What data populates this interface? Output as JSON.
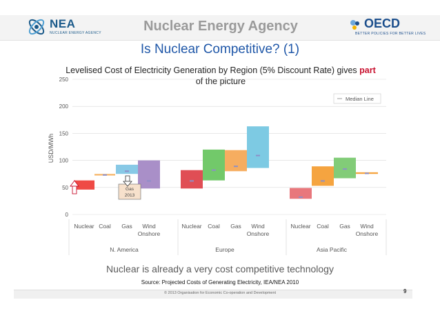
{
  "header": {
    "nea_name": "NEA",
    "nea_subtitle": "NUCLEAR ENERGY AGENCY",
    "agency": "Nuclear Energy Agency",
    "oecd_name": "OECD",
    "oecd_subtitle": "BETTER POLICIES FOR BETTER LIVES"
  },
  "slide": {
    "title": "Is Nuclear Competitive? (1)",
    "subtitle_main": "Levelised Cost of Electricity Generation by Region (5% Discount Rate) gives ",
    "subtitle_highlight": "part",
    "subtitle_end": " of the picture",
    "takeaway": "Nuclear is already a very cost competitive technology",
    "source": "Source: Projected Costs of Generating Electricity, IEA/NEA 2010",
    "copyright": "© 2013 Organisation for Economic Co-operation and Development",
    "page_number": "9"
  },
  "colors": {
    "nuclear": "#ef4a45",
    "coal": "#f7b86e",
    "gas": "#88c9e6",
    "wind": "#a98fc8",
    "nuclear_eu": "#e04e55",
    "coal_eu": "#72c96a",
    "gas_eu": "#f6ad60",
    "wind_eu": "#7dcae3",
    "nuclear_ap": "#e8777c",
    "coal_ap": "#f5a440",
    "gas_ap": "#82cc78",
    "wind_ap": "#f5a440",
    "median": "#8d8fc8",
    "title_blue": "#1f57a8",
    "highlight_red": "#c8102e"
  },
  "chart_data": {
    "type": "floating-bar",
    "ylabel": "USD/MWh",
    "ylim": [
      0,
      250
    ],
    "yticks": [
      0,
      50,
      100,
      150,
      200,
      250
    ],
    "legend": "Median Line",
    "legend_position": "top-right",
    "annotation": "Gas 2013",
    "regions": [
      {
        "name": "N. America",
        "bars": [
          {
            "tech": "Nuclear",
            "label": "Nuclear",
            "low": 46,
            "high": 63,
            "median": null,
            "color": "nuclear"
          },
          {
            "tech": "Coal",
            "label": "Coal",
            "low": 72,
            "high": 75,
            "median": 73,
            "color": "coal"
          },
          {
            "tech": "Gas",
            "label": "Gas",
            "low": 75,
            "high": 92,
            "median": 80,
            "color": "gas"
          },
          {
            "tech": "Wind Onshore",
            "label": "Wind\nOnshore",
            "low": 48,
            "high": 100,
            "median": 62,
            "color": "wind"
          }
        ]
      },
      {
        "name": "Europe",
        "bars": [
          {
            "tech": "Nuclear",
            "label": "Nuclear",
            "low": 48,
            "high": 82,
            "median": 62,
            "color": "nuclear_eu"
          },
          {
            "tech": "Coal",
            "label": "Coal",
            "low": 63,
            "high": 120,
            "median": 82,
            "color": "coal_eu"
          },
          {
            "tech": "Gas",
            "label": "Gas",
            "low": 80,
            "high": 119,
            "median": 89,
            "color": "gas_eu"
          },
          {
            "tech": "Wind Onshore",
            "label": "Wind\nOnshore",
            "low": 86,
            "high": 163,
            "median": 109,
            "color": "wind_eu"
          }
        ]
      },
      {
        "name": "Asia Pacific",
        "bars": [
          {
            "tech": "Nuclear",
            "label": "Nuclear",
            "low": 29,
            "high": 49,
            "median": 32,
            "color": "nuclear_ap"
          },
          {
            "tech": "Coal",
            "label": "Coal",
            "low": 53,
            "high": 89,
            "median": 62,
            "color": "coal_ap"
          },
          {
            "tech": "Gas",
            "label": "Gas",
            "low": 67,
            "high": 105,
            "median": 84,
            "color": "gas_ap"
          },
          {
            "tech": "Wind Onshore",
            "label": "Wind\nOnshore",
            "low": 75,
            "high": 78,
            "median": 76,
            "color": "wind_ap"
          }
        ]
      }
    ]
  }
}
